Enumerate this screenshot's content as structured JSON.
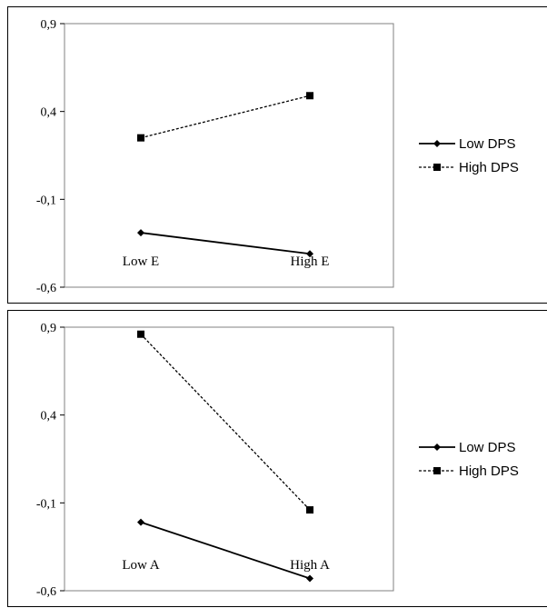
{
  "chart_data": [
    {
      "type": "line",
      "categories": [
        "Low E",
        "High E"
      ],
      "series": [
        {
          "name": "Low DPS",
          "values": [
            -0.29,
            -0.41
          ],
          "style": "solid",
          "marker": "diamond",
          "color": "#000000"
        },
        {
          "name": "High DPS",
          "values": [
            0.25,
            0.49
          ],
          "style": "dashed",
          "marker": "square",
          "color": "#000000"
        }
      ],
      "yticks": [
        "0,9",
        "0,4",
        "-0,1",
        "-0,6"
      ],
      "ytick_values": [
        0.9,
        0.4,
        -0.1,
        -0.6
      ],
      "ylim": [
        -0.6,
        0.9
      ],
      "grid": false,
      "legend_position": "right"
    },
    {
      "type": "line",
      "categories": [
        "Low A",
        "High A"
      ],
      "series": [
        {
          "name": "Low DPS",
          "values": [
            -0.21,
            -0.53
          ],
          "style": "solid",
          "marker": "diamond",
          "color": "#000000"
        },
        {
          "name": "High DPS",
          "values": [
            0.86,
            -0.14
          ],
          "style": "dashed",
          "marker": "square",
          "color": "#000000"
        }
      ],
      "yticks": [
        "0,9",
        "0,4",
        "-0,1",
        "-0,6"
      ],
      "ytick_values": [
        0.9,
        0.4,
        -0.1,
        -0.6
      ],
      "ylim": [
        -0.6,
        0.9
      ],
      "grid": false,
      "legend_position": "right"
    }
  ]
}
